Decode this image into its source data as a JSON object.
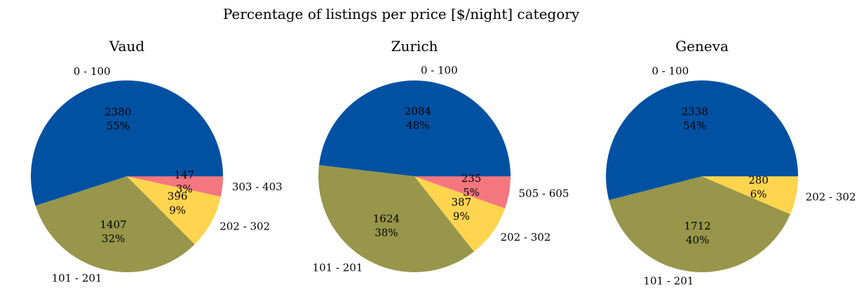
{
  "suptitle": "Percentage of listings per price [$/night] category",
  "colors": {
    "0 - 100": "#0051a2",
    "101 - 201": "#97964a",
    "202 - 302": "#ffd44f",
    "303 - 403": "#f4777f",
    "505 - 605": "#f4777f"
  },
  "chart_data": [
    {
      "type": "pie",
      "title": "Vaud",
      "slices": [
        {
          "label": "0 - 100",
          "value": 2380,
          "pct": "55%"
        },
        {
          "label": "101 - 201",
          "value": 1407,
          "pct": "32%"
        },
        {
          "label": "202 - 302",
          "value": 396,
          "pct": "9%"
        },
        {
          "label": "303 - 403",
          "value": 147,
          "pct": "3%"
        }
      ]
    },
    {
      "type": "pie",
      "title": "Zurich",
      "slices": [
        {
          "label": "0 - 100",
          "value": 2084,
          "pct": "48%"
        },
        {
          "label": "101 - 201",
          "value": 1624,
          "pct": "38%"
        },
        {
          "label": "202 - 302",
          "value": 387,
          "pct": "9%"
        },
        {
          "label": "505 - 605",
          "value": 235,
          "pct": "5%"
        }
      ]
    },
    {
      "type": "pie",
      "title": "Geneva",
      "slices": [
        {
          "label": "0 - 100",
          "value": 2338,
          "pct": "54%"
        },
        {
          "label": "101 - 201",
          "value": 1712,
          "pct": "40%"
        },
        {
          "label": "202 - 302",
          "value": 280,
          "pct": "6%"
        }
      ]
    }
  ]
}
